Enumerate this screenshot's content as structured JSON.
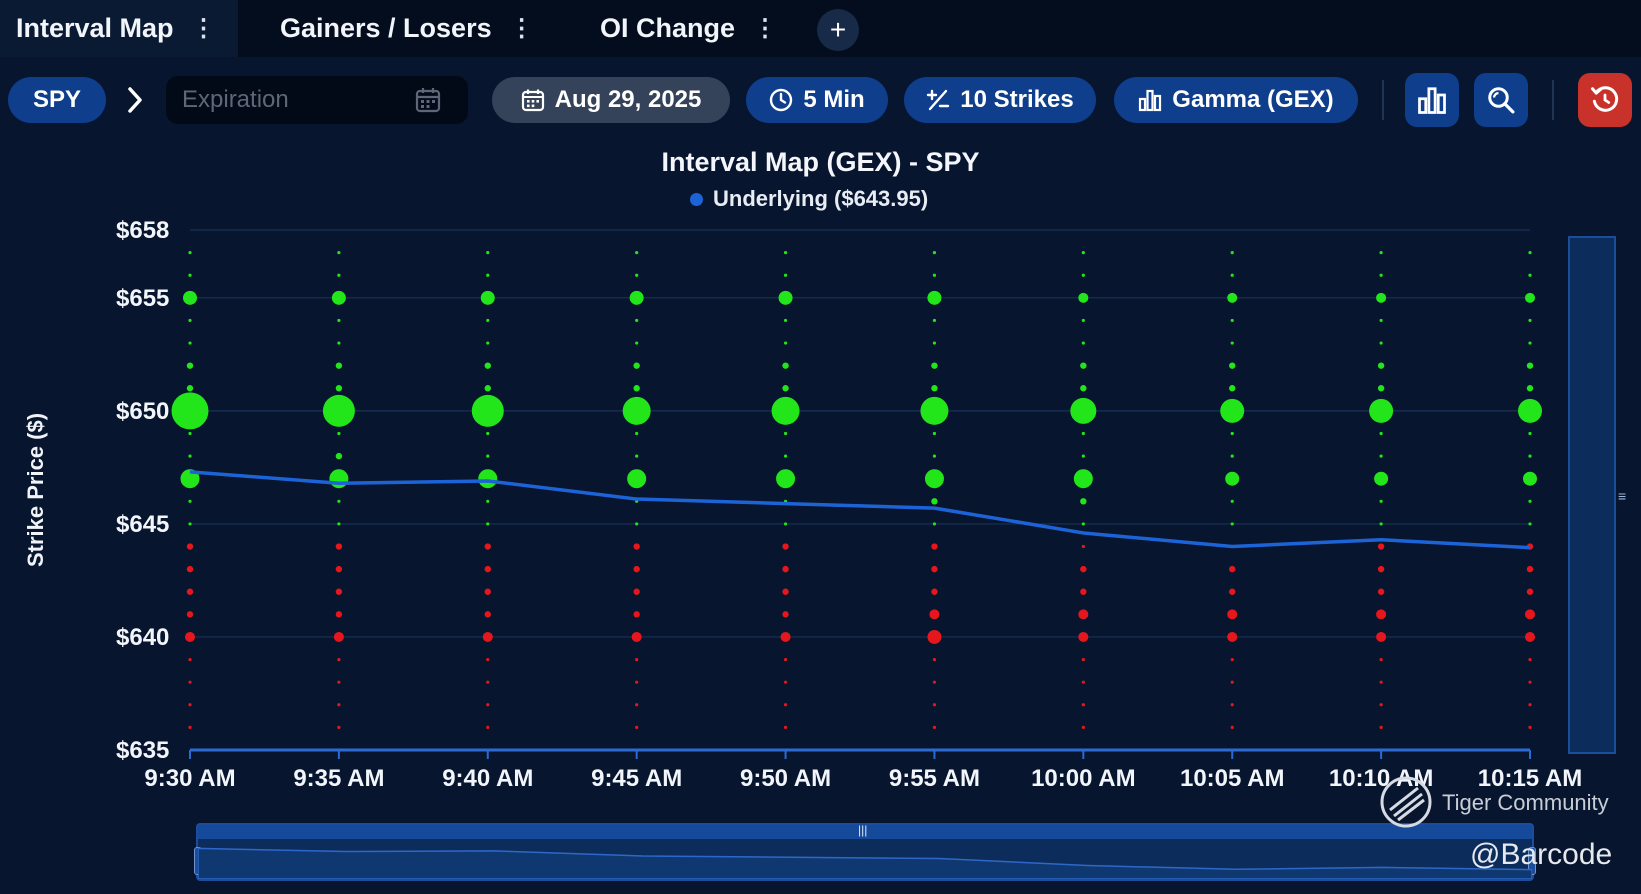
{
  "tabs": [
    {
      "label": "Interval Map",
      "active": true
    },
    {
      "label": "Gainers / Losers",
      "active": false
    },
    {
      "label": "OI Change",
      "active": false
    }
  ],
  "tab_add_label": "+",
  "toolbar": {
    "ticker": "SPY",
    "expiration_placeholder": "Expiration",
    "date": "Aug 29, 2025",
    "interval": "5 Min",
    "strikes": "10 Strikes",
    "metric": "Gamma (GEX)"
  },
  "colors": {
    "positive": "#22e51a",
    "negative": "#e5161c",
    "line": "#1d63d8",
    "accent": "#0e3e8c",
    "reset": "#c8322a"
  },
  "icons": [
    "calendar-icon",
    "clock-icon",
    "strikes-icon",
    "bar-chart-icon",
    "search-icon",
    "reset-icon",
    "chevron-right-icon"
  ],
  "chart_data": {
    "type": "scatter",
    "title": "Interval Map (GEX) - SPY",
    "legend": [
      {
        "name": "Underlying ($643.95)",
        "color": "#1d63d8"
      }
    ],
    "legend_position": "top-center",
    "ylabel": "Strike Price ($)",
    "xlabel": "",
    "ylim": [
      635,
      658
    ],
    "y_ticks": [
      {
        "value": 635,
        "label": "$635"
      },
      {
        "value": 640,
        "label": "$640"
      },
      {
        "value": 645,
        "label": "$645"
      },
      {
        "value": 650,
        "label": "$650"
      },
      {
        "value": 655,
        "label": "$655"
      },
      {
        "value": 658,
        "label": "$658"
      }
    ],
    "categories": [
      "9:30 AM",
      "9:35 AM",
      "9:40 AM",
      "9:45 AM",
      "9:50 AM",
      "9:55 AM",
      "10:00 AM",
      "10:05 AM",
      "10:10 AM",
      "10:15 AM"
    ],
    "strikes": [
      657,
      656,
      655,
      654,
      653,
      652,
      651,
      650,
      649,
      648,
      647,
      646,
      645,
      644,
      643,
      642,
      641,
      640,
      639,
      638,
      637,
      636
    ],
    "gex_magnitude": [
      [
        1,
        1,
        4,
        1,
        1,
        2,
        2,
        10,
        1,
        1,
        5,
        1,
        1,
        2,
        2,
        2,
        2,
        3,
        1,
        1,
        1,
        1
      ],
      [
        1,
        1,
        4,
        1,
        1,
        2,
        2,
        9,
        1,
        2,
        5,
        1,
        1,
        2,
        2,
        2,
        2,
        3,
        1,
        1,
        1,
        1
      ],
      [
        1,
        1,
        4,
        1,
        1,
        2,
        2,
        9,
        1,
        1,
        5,
        1,
        1,
        2,
        2,
        2,
        2,
        3,
        1,
        1,
        1,
        1
      ],
      [
        1,
        1,
        4,
        1,
        1,
        2,
        2,
        8,
        1,
        1,
        5,
        1,
        1,
        2,
        2,
        2,
        2,
        3,
        1,
        1,
        1,
        1
      ],
      [
        1,
        1,
        4,
        1,
        1,
        2,
        2,
        8,
        1,
        1,
        5,
        1,
        1,
        2,
        2,
        2,
        2,
        3,
        1,
        1,
        1,
        1
      ],
      [
        1,
        1,
        4,
        1,
        1,
        2,
        2,
        8,
        1,
        1,
        5,
        2,
        1,
        2,
        2,
        2,
        3,
        4,
        1,
        1,
        1,
        1
      ],
      [
        1,
        1,
        3,
        1,
        1,
        2,
        2,
        7,
        1,
        1,
        5,
        2,
        1,
        1,
        2,
        2,
        3,
        3,
        1,
        1,
        1,
        1
      ],
      [
        1,
        1,
        3,
        1,
        1,
        2,
        2,
        6,
        1,
        1,
        4,
        1,
        1,
        1,
        2,
        2,
        3,
        3,
        1,
        1,
        1,
        1
      ],
      [
        1,
        1,
        3,
        1,
        1,
        2,
        2,
        6,
        1,
        1,
        4,
        1,
        1,
        2,
        2,
        2,
        3,
        3,
        1,
        1,
        1,
        1
      ],
      [
        1,
        1,
        3,
        1,
        1,
        2,
        2,
        6,
        1,
        1,
        4,
        1,
        1,
        2,
        2,
        2,
        3,
        3,
        1,
        1,
        1,
        1
      ]
    ],
    "gex_sign_rule": "strike >= 645 positive (green), strike <= 644 negative (red)",
    "underlying": [
      647.3,
      646.8,
      646.9,
      646.1,
      645.9,
      645.7,
      644.6,
      644.0,
      644.3,
      643.95
    ],
    "grid": true
  },
  "watermark": {
    "brand": "Tiger Community",
    "handle": "@Barcode"
  }
}
